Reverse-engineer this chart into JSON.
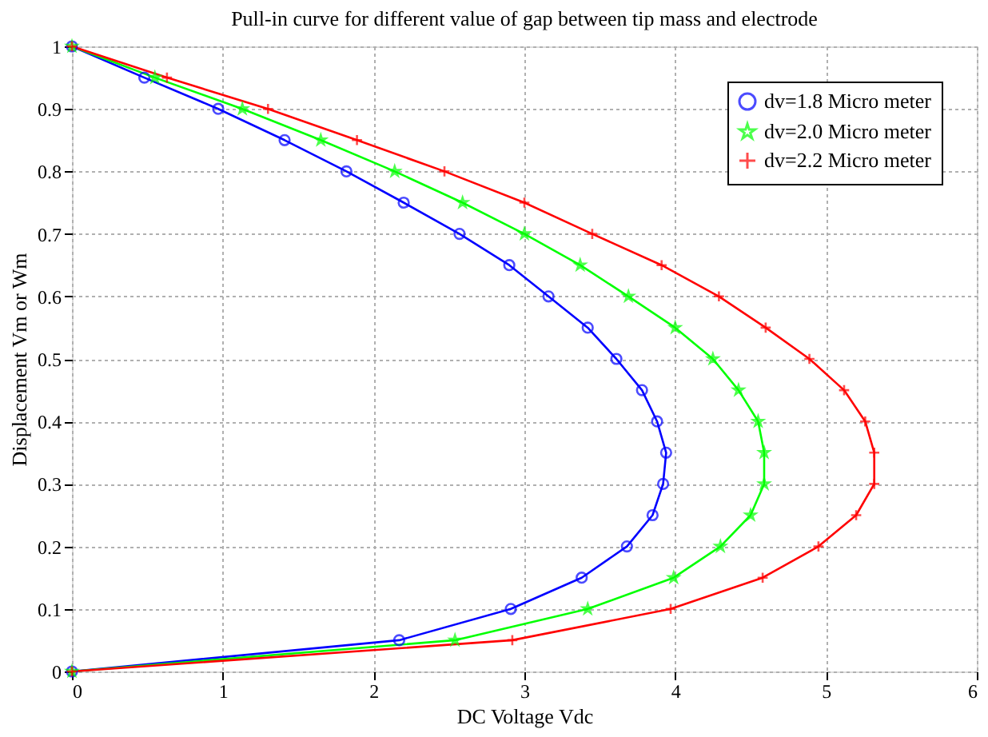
{
  "chart_data": {
    "type": "line",
    "title": "Pull-in curve for different value of gap between tip mass and electrode",
    "xlabel": "DC Voltage Vdc",
    "ylabel": "Displacement Vm or Wm",
    "xlim": [
      0,
      6
    ],
    "ylim": [
      0,
      1
    ],
    "xticks": [
      0,
      1,
      2,
      3,
      4,
      5,
      6
    ],
    "yticks": [
      0,
      0.1,
      0.2,
      0.3,
      0.4,
      0.5,
      0.6,
      0.7,
      0.8,
      0.9,
      1
    ],
    "grid": true,
    "legend": "top right",
    "line_style": "solid",
    "series": [
      {
        "name": "dv=1.8 Micro meter",
        "color": "#0000ff",
        "marker": "circle",
        "x": [
          0,
          0.48,
          0.97,
          1.41,
          1.82,
          2.2,
          2.57,
          2.9,
          3.16,
          3.42,
          3.61,
          3.78,
          3.88,
          3.94,
          3.92,
          3.85,
          3.68,
          3.38,
          2.91,
          2.17,
          0
        ],
        "values": [
          1,
          0.95,
          0.9,
          0.85,
          0.8,
          0.75,
          0.7,
          0.65,
          0.6,
          0.55,
          0.5,
          0.45,
          0.4,
          0.35,
          0.3,
          0.25,
          0.2,
          0.15,
          0.1,
          0.05,
          0
        ]
      },
      {
        "name": "dv=2.0 Micro meter",
        "color": "#00ff00",
        "marker": "star",
        "x": [
          0,
          0.55,
          1.13,
          1.65,
          2.14,
          2.59,
          3.0,
          3.37,
          3.69,
          4.0,
          4.25,
          4.42,
          4.55,
          4.59,
          4.59,
          4.5,
          4.3,
          3.99,
          3.42,
          2.54,
          0
        ],
        "values": [
          1,
          0.95,
          0.9,
          0.85,
          0.8,
          0.75,
          0.7,
          0.65,
          0.6,
          0.55,
          0.5,
          0.45,
          0.4,
          0.35,
          0.3,
          0.25,
          0.2,
          0.15,
          0.1,
          0.05,
          0
        ]
      },
      {
        "name": "dv=2.2 Micro meter",
        "color": "#ff0000",
        "marker": "cross",
        "x": [
          0,
          0.63,
          1.3,
          1.89,
          2.47,
          3.0,
          3.45,
          3.91,
          4.29,
          4.6,
          4.89,
          5.12,
          5.26,
          5.32,
          5.32,
          5.2,
          4.95,
          4.58,
          3.97,
          2.92,
          0
        ],
        "values": [
          1,
          0.95,
          0.9,
          0.85,
          0.8,
          0.75,
          0.7,
          0.65,
          0.6,
          0.55,
          0.5,
          0.45,
          0.4,
          0.35,
          0.3,
          0.25,
          0.2,
          0.15,
          0.1,
          0.05,
          0
        ]
      }
    ]
  }
}
